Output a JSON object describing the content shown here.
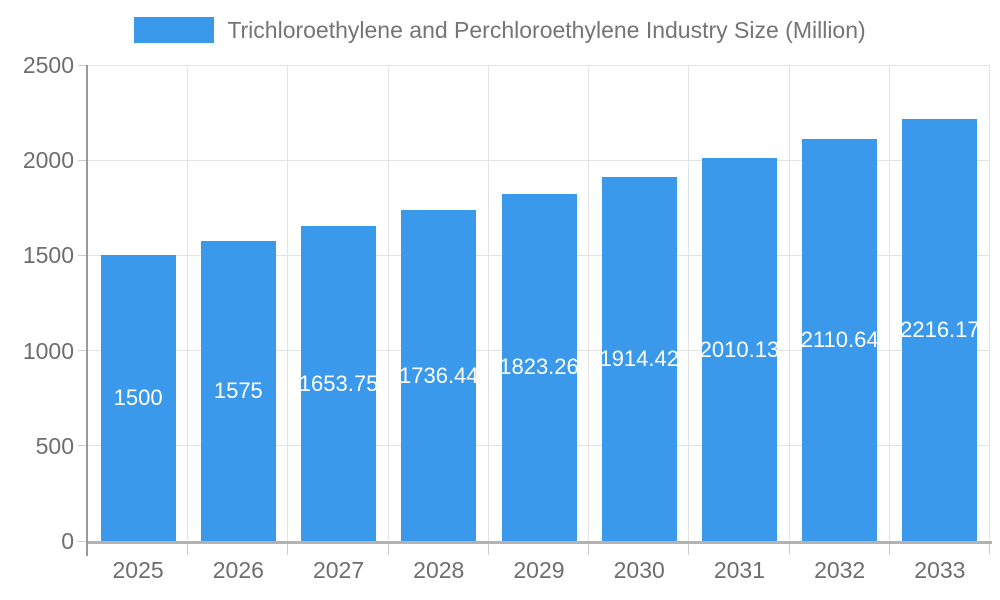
{
  "chart_data": {
    "type": "bar",
    "title": "Trichloroethylene and Perchloroethylene Industry Size (Million)",
    "legend": [
      "Trichloroethylene and Perchloroethylene Industry Size (Million)"
    ],
    "legend_position": "top-center",
    "categories": [
      "2025",
      "2026",
      "2027",
      "2028",
      "2029",
      "2030",
      "2031",
      "2032",
      "2033"
    ],
    "values": [
      1500,
      1575,
      1653.75,
      1736.44,
      1823.26,
      1914.42,
      2010.13,
      2110.64,
      2216.17
    ],
    "value_labels": [
      "1500",
      "1575",
      "1653.75",
      "1736.44",
      "1823.26",
      "1914.42",
      "2010.13",
      "2110.64",
      "2216.17"
    ],
    "xlabel": "",
    "ylabel": "",
    "ylim": [
      0,
      2500
    ],
    "yticks": [
      0,
      500,
      1000,
      1500,
      2000,
      2500
    ],
    "grid": true,
    "colors": {
      "bar": "#3B99EC",
      "bar_label": "#FFFFFF",
      "axis_label": "#6E6E6E",
      "title": "#757575",
      "gridline": "#E3E3E3",
      "x_axis_line": "#B3B3B3",
      "y_axis_line": "#999999"
    }
  }
}
